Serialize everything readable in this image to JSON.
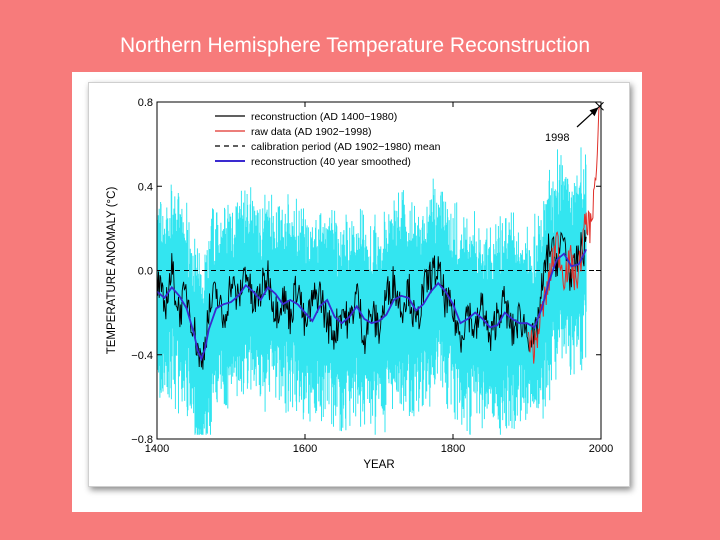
{
  "slide": {
    "title": "Northern Hemisphere Temperature Reconstruction"
  },
  "colors": {
    "background": "#f77b7b",
    "uncertainty": "#33e5f0",
    "reconstruction": "#000000",
    "raw": "#e0302a",
    "smoothed": "#3a2ad0"
  },
  "chart_data": {
    "type": "line",
    "xlabel": "YEAR",
    "ylabel": "TEMPERATURE ANOMALY (°C)",
    "xlim": [
      1400,
      2000
    ],
    "ylim": [
      -0.8,
      0.8
    ],
    "xticks": [
      {
        "value": 1400,
        "label": "1400"
      },
      {
        "value": 1600,
        "label": "1600"
      },
      {
        "value": 1800,
        "label": "1800"
      },
      {
        "value": 2000,
        "label": "2000"
      }
    ],
    "yticks": [
      {
        "value": 0.8,
        "label": "0.8"
      },
      {
        "value": 0.4,
        "label": "0.4"
      },
      {
        "value": 0.0,
        "label": "0.0"
      },
      {
        "value": -0.4,
        "label": "−0.4"
      },
      {
        "value": -0.8,
        "label": "−0.8"
      }
    ],
    "legend": [
      {
        "label": "reconstruction (AD 1400−1980)",
        "color": "#000000",
        "style": "solid"
      },
      {
        "label": "raw data (AD 1902−1998)",
        "color": "#e0302a",
        "style": "solid"
      },
      {
        "label": "calibration period (AD 1902−1980) mean",
        "color": "#000000",
        "style": "dashed"
      },
      {
        "label": "reconstruction (40 year smoothed)",
        "color": "#3a2ad0",
        "style": "solid"
      }
    ],
    "legend_position": "top-left",
    "annotation": {
      "label": "1998",
      "x": 1998,
      "y": 0.78
    },
    "calibration_mean": 0.0,
    "series": [
      {
        "name": "reconstruction (40 year smoothed)",
        "x": [
          1400,
          1410,
          1420,
          1430,
          1440,
          1450,
          1455,
          1460,
          1465,
          1470,
          1480,
          1490,
          1500,
          1510,
          1520,
          1530,
          1540,
          1550,
          1560,
          1570,
          1580,
          1590,
          1600,
          1610,
          1620,
          1630,
          1640,
          1650,
          1660,
          1670,
          1680,
          1690,
          1700,
          1710,
          1720,
          1730,
          1740,
          1750,
          1760,
          1770,
          1780,
          1790,
          1800,
          1810,
          1820,
          1830,
          1840,
          1850,
          1860,
          1870,
          1880,
          1890,
          1900,
          1910,
          1920,
          1930,
          1940,
          1950,
          1960,
          1970,
          1980
        ],
        "y": [
          -0.1,
          -0.13,
          -0.08,
          -0.12,
          -0.18,
          -0.3,
          -0.38,
          -0.42,
          -0.37,
          -0.28,
          -0.18,
          -0.16,
          -0.15,
          -0.12,
          -0.07,
          -0.1,
          -0.14,
          -0.08,
          -0.11,
          -0.16,
          -0.14,
          -0.16,
          -0.2,
          -0.24,
          -0.17,
          -0.14,
          -0.22,
          -0.25,
          -0.22,
          -0.17,
          -0.23,
          -0.25,
          -0.24,
          -0.21,
          -0.14,
          -0.12,
          -0.13,
          -0.19,
          -0.16,
          -0.1,
          -0.06,
          -0.1,
          -0.16,
          -0.25,
          -0.23,
          -0.2,
          -0.23,
          -0.27,
          -0.26,
          -0.2,
          -0.23,
          -0.25,
          -0.25,
          -0.27,
          -0.18,
          -0.05,
          0.05,
          0.08,
          0.02,
          0.03,
          0.1
        ]
      },
      {
        "name": "reconstruction (AD 1400−1980)",
        "x": [
          1400,
          1410,
          1420,
          1430,
          1440,
          1450,
          1460,
          1470,
          1480,
          1490,
          1500,
          1510,
          1520,
          1530,
          1540,
          1550,
          1560,
          1570,
          1580,
          1590,
          1600,
          1610,
          1620,
          1630,
          1640,
          1650,
          1660,
          1670,
          1680,
          1690,
          1700,
          1710,
          1720,
          1730,
          1740,
          1750,
          1760,
          1770,
          1780,
          1790,
          1800,
          1810,
          1820,
          1830,
          1840,
          1850,
          1860,
          1870,
          1880,
          1890,
          1900,
          1910,
          1920,
          1930,
          1940,
          1950,
          1960,
          1970,
          1980
        ],
        "y": [
          -0.05,
          -0.18,
          0.0,
          -0.2,
          -0.1,
          -0.28,
          -0.45,
          -0.2,
          -0.1,
          -0.25,
          -0.05,
          -0.15,
          0.02,
          -0.18,
          -0.1,
          -0.02,
          -0.2,
          -0.12,
          -0.22,
          -0.05,
          -0.28,
          -0.15,
          -0.1,
          -0.25,
          -0.3,
          -0.18,
          -0.26,
          -0.1,
          -0.32,
          -0.2,
          -0.28,
          -0.12,
          -0.05,
          -0.18,
          -0.08,
          -0.28,
          -0.1,
          -0.02,
          0.0,
          -0.15,
          -0.2,
          -0.32,
          -0.18,
          -0.3,
          -0.15,
          -0.35,
          -0.2,
          -0.15,
          -0.3,
          -0.22,
          -0.28,
          -0.35,
          -0.1,
          0.12,
          0.05,
          0.15,
          -0.05,
          0.08,
          0.12
        ]
      },
      {
        "name": "raw data (AD 1902−1998)",
        "x": [
          1902,
          1910,
          1920,
          1930,
          1940,
          1945,
          1950,
          1960,
          1965,
          1970,
          1975,
          1980,
          1985,
          1990,
          1995,
          1998
        ],
        "y": [
          -0.3,
          -0.38,
          -0.2,
          -0.05,
          0.15,
          0.05,
          -0.02,
          0.05,
          -0.05,
          0.0,
          0.12,
          0.25,
          0.2,
          0.35,
          0.5,
          0.78
        ]
      }
    ]
  }
}
